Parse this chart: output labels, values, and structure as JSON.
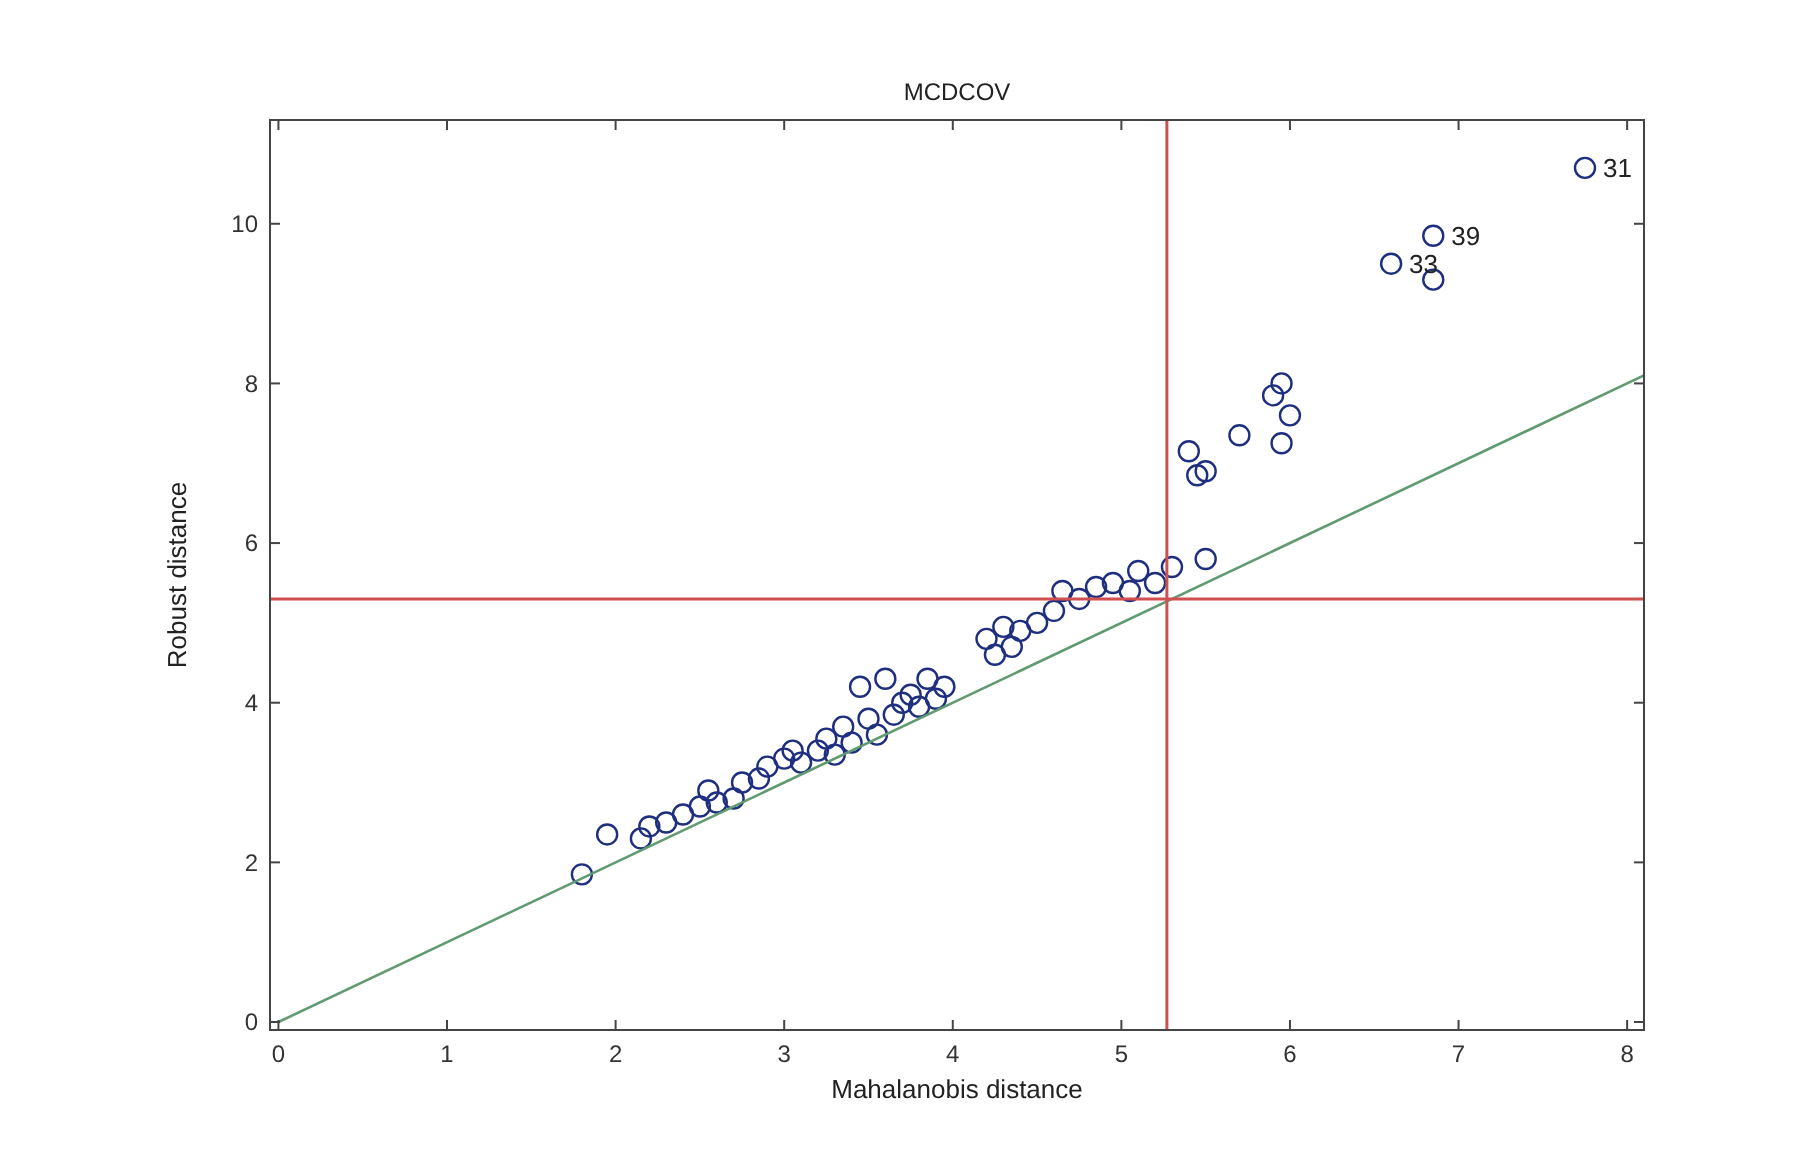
{
  "chart_data": {
    "type": "scatter",
    "title": "MCDCOV",
    "xlabel": "Mahalanobis distance",
    "ylabel": "Robust distance",
    "xlim": [
      -0.05,
      8.1
    ],
    "ylim": [
      -0.1,
      11.3
    ],
    "xticks": [
      0,
      1,
      2,
      3,
      4,
      5,
      6,
      7,
      8
    ],
    "yticks": [
      0,
      2,
      4,
      6,
      8,
      10
    ],
    "grid": false,
    "marker": "circle",
    "series": [
      {
        "color": "#1f2f80",
        "x": [
          1.8,
          1.95,
          2.15,
          2.2,
          2.3,
          2.4,
          2.5,
          2.55,
          2.6,
          2.7,
          2.75,
          2.85,
          2.9,
          3.0,
          3.05,
          3.1,
          3.2,
          3.25,
          3.3,
          3.35,
          3.4,
          3.45,
          3.5,
          3.55,
          3.6,
          3.65,
          3.7,
          3.75,
          3.8,
          3.85,
          3.9,
          3.95,
          4.2,
          4.25,
          4.3,
          4.35,
          4.4,
          4.5,
          4.6,
          4.65,
          4.75,
          4.85,
          4.95,
          5.05,
          5.1,
          5.2,
          5.3,
          5.5,
          5.4,
          5.45,
          5.5,
          5.7,
          5.9,
          5.95,
          6.0,
          5.95,
          6.6,
          6.85,
          6.85,
          7.75
        ],
        "values": [
          1.85,
          2.35,
          2.3,
          2.45,
          2.5,
          2.6,
          2.7,
          2.9,
          2.75,
          2.8,
          3.0,
          3.05,
          3.2,
          3.3,
          3.4,
          3.25,
          3.4,
          3.55,
          3.35,
          3.7,
          3.5,
          4.2,
          3.8,
          3.6,
          4.3,
          3.85,
          4.0,
          4.1,
          3.95,
          4.3,
          4.05,
          4.2,
          4.8,
          4.6,
          4.95,
          4.7,
          4.9,
          5.0,
          5.15,
          5.4,
          5.3,
          5.45,
          5.5,
          5.4,
          5.65,
          5.5,
          5.7,
          5.8,
          7.15,
          6.85,
          6.9,
          7.35,
          7.85,
          8.0,
          7.6,
          7.25,
          9.5,
          9.85,
          9.3,
          10.7
        ]
      },
      {
        "type": "line",
        "color": "#5f9a70",
        "marker": "none",
        "x": [
          0,
          8.1
        ],
        "values": [
          0,
          8.1
        ]
      }
    ],
    "ref_lines": [
      {
        "axis": "x",
        "value": 5.27,
        "color": "#d05050"
      },
      {
        "axis": "y",
        "value": 5.3,
        "color": "#d05050"
      }
    ],
    "annotations": [
      {
        "text": "31",
        "x": 7.75,
        "y": 10.7
      },
      {
        "text": "39",
        "x": 6.85,
        "y": 9.85
      },
      {
        "text": "33",
        "x": 6.6,
        "y": 9.5
      }
    ]
  }
}
